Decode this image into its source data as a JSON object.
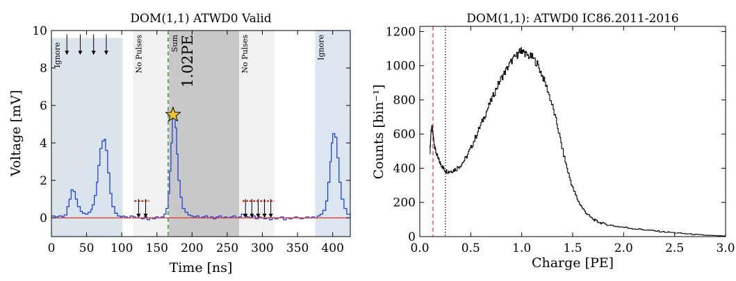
{
  "chart_data": [
    {
      "type": "line",
      "title": "DOM(1,1) ATWD0 Valid",
      "xlabel": "Time [ns]",
      "ylabel": "Voltage [mV]",
      "xlim": [
        0,
        425
      ],
      "ylim": [
        -1,
        10
      ],
      "xticks": [
        "0",
        "50",
        "100",
        "150",
        "200",
        "250",
        "300",
        "350",
        "400"
      ],
      "yticks": [
        "0",
        "2",
        "4",
        "6",
        "8",
        "10"
      ],
      "grid": false,
      "regions": [
        {
          "label": "Ignore",
          "x0": 0,
          "x1": 101,
          "ytop": 9.6,
          "color": "#dae4ec"
        },
        {
          "label": "No Pulses",
          "x0": 116,
          "x1": 166,
          "ytop": 10,
          "color": "#f1f1f1"
        },
        {
          "label": "Sum",
          "x0": 167,
          "x1": 267,
          "ytop": 10,
          "color": "#c8c8c8"
        },
        {
          "label": "No Pulses",
          "x0": 267,
          "x1": 317,
          "ytop": 10,
          "color": "#f1f1f1"
        },
        {
          "label": "Ignore",
          "x0": 375,
          "x1": 425,
          "ytop": 10,
          "color": "#dce6f1"
        }
      ],
      "sum_charge_label": "1.02PE",
      "start_marker_x": 166,
      "peak_marker": {
        "x": 173,
        "y": 5.5
      },
      "ignored_pulse_arrows_x": [
        22,
        41,
        60,
        78
      ],
      "no_pulse_arrows_x": [
        124,
        134,
        276,
        285,
        294,
        303,
        312
      ],
      "threshold_segments": [
        {
          "x0": 118,
          "x1": 139,
          "y": 0.9
        },
        {
          "x0": 272,
          "x1": 317,
          "y": 0.9
        }
      ],
      "baseline_y": 0,
      "series": [
        {
          "color": "#1f3fe0",
          "x": [
            0,
            5,
            10,
            15,
            18,
            22,
            25,
            28,
            31,
            34,
            37,
            41,
            44,
            48,
            52,
            56,
            58,
            61,
            64,
            66,
            69,
            72,
            75,
            77,
            80,
            83,
            86,
            90,
            94,
            98,
            101,
            104,
            108,
            112,
            116,
            120,
            124,
            128,
            132,
            136,
            140,
            144,
            148,
            152,
            156,
            160,
            163,
            166,
            168,
            170,
            172,
            174,
            176,
            178,
            180,
            183,
            186,
            190,
            194,
            198,
            202,
            206,
            210,
            214,
            218,
            222,
            226,
            230,
            234,
            238,
            242,
            246,
            250,
            254,
            258,
            262,
            266,
            270,
            274,
            278,
            282,
            286,
            290,
            294,
            298,
            302,
            306,
            310,
            314,
            318,
            322,
            326,
            330,
            334,
            338,
            342,
            346,
            350,
            354,
            358,
            362,
            366,
            370,
            374,
            378,
            382,
            386,
            390,
            393,
            396,
            398,
            400,
            403,
            406,
            409,
            412,
            416,
            420,
            425
          ],
          "y": [
            0.1,
            0.05,
            0.1,
            0.05,
            0.15,
            0.6,
            1.0,
            1.5,
            1.4,
            1.0,
            0.6,
            0.35,
            0.25,
            0.2,
            0.3,
            0.45,
            0.7,
            1.2,
            1.9,
            2.8,
            3.7,
            4.1,
            4.2,
            3.6,
            2.4,
            1.3,
            0.6,
            0.25,
            0.1,
            0.05,
            0.1,
            0.05,
            0.0,
            0.1,
            0.05,
            0.0,
            0.0,
            -0.05,
            0.05,
            -0.1,
            0.0,
            -0.05,
            0.05,
            0.0,
            0.05,
            0.2,
            0.5,
            1.3,
            2.5,
            4.0,
            5.3,
            5.5,
            4.8,
            3.4,
            2.0,
            1.1,
            0.5,
            0.3,
            0.15,
            0.1,
            0.05,
            0.1,
            0.0,
            0.05,
            0.1,
            0.0,
            0.05,
            -0.05,
            0.05,
            0.1,
            0.0,
            0.05,
            0.0,
            0.05,
            0.1,
            0.0,
            0.05,
            0.2,
            0.1,
            0.05,
            0.0,
            0.1,
            -0.05,
            0.05,
            0.0,
            -0.05,
            0.0,
            -0.1,
            0.0,
            -0.05,
            0.0,
            0.05,
            -0.1,
            0.0,
            -0.05,
            0.0,
            0.05,
            0.0,
            -0.05,
            0.0,
            0.05,
            0.0,
            0.05,
            0.0,
            0.1,
            0.2,
            0.4,
            0.9,
            1.9,
            3.0,
            4.0,
            4.5,
            4.3,
            3.2,
            1.9,
            1.0,
            0.5,
            0.2,
            0.1
          ]
        },
        {
          "color": "#e0302a",
          "x": [
            0,
            425
          ],
          "y": [
            0,
            0
          ]
        }
      ]
    },
    {
      "type": "line",
      "title": "DOM(1,1): ATWD0 IC86.2011-2016",
      "xlabel": "Charge [PE]",
      "ylabel": "Counts [bin⁻¹]",
      "xlim": [
        0,
        3
      ],
      "ylim": [
        0,
        1230
      ],
      "xticks": [
        "0.0",
        "0.5",
        "1.0",
        "1.5",
        "2.0",
        "2.5",
        "3.0"
      ],
      "yticks": [
        "0",
        "200",
        "400",
        "600",
        "800",
        "1000",
        "1200"
      ],
      "grid": false,
      "vlines": [
        {
          "x": 0.13,
          "color": "#e8545a",
          "style": "dashed"
        },
        {
          "x": 0.25,
          "color": "#000000",
          "style": "dotted"
        }
      ],
      "series": [
        {
          "color": "#000000",
          "x": [
            0.1,
            0.11,
            0.12,
            0.13,
            0.14,
            0.15,
            0.17,
            0.19,
            0.21,
            0.23,
            0.25,
            0.28,
            0.31,
            0.35,
            0.4,
            0.45,
            0.5,
            0.55,
            0.6,
            0.65,
            0.7,
            0.75,
            0.8,
            0.85,
            0.9,
            0.95,
            0.98,
            1.0,
            1.02,
            1.05,
            1.1,
            1.15,
            1.2,
            1.25,
            1.3,
            1.35,
            1.4,
            1.45,
            1.5,
            1.55,
            1.6,
            1.65,
            1.7,
            1.75,
            1.8,
            1.9,
            2.0,
            2.1,
            2.2,
            2.3,
            2.4,
            2.5,
            2.6,
            2.7,
            2.8,
            2.9,
            3.0
          ],
          "y": [
            500,
            620,
            640,
            590,
            550,
            510,
            470,
            440,
            420,
            400,
            385,
            380,
            385,
            395,
            420,
            460,
            520,
            590,
            660,
            730,
            800,
            870,
            930,
            980,
            1030,
            1060,
            1080,
            1090,
            1080,
            1060,
            1050,
            1010,
            940,
            860,
            760,
            640,
            500,
            380,
            280,
            210,
            160,
            125,
            100,
            85,
            75,
            62,
            54,
            46,
            40,
            33,
            27,
            22,
            17,
            12,
            8,
            5,
            3
          ]
        }
      ]
    }
  ]
}
